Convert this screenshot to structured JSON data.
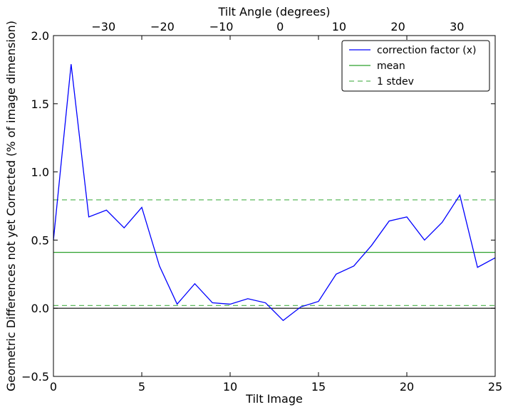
{
  "chart_data": {
    "type": "line",
    "xlabel": "Tilt Image",
    "ylabel": "Geometric Differences not yet Corrected (% of image dimension)",
    "top_xlabel": "Tilt Angle (degrees)",
    "xlim": [
      0,
      25
    ],
    "ylim": [
      -0.5,
      2.0
    ],
    "top_xlim": [
      -38.5,
      36.5
    ],
    "x_ticks": [
      0,
      5,
      10,
      15,
      20,
      25
    ],
    "x_tick_labels": [
      "0",
      "5",
      "10",
      "15",
      "20",
      "25"
    ],
    "y_ticks": [
      -0.5,
      0.0,
      0.5,
      1.0,
      1.5,
      2.0
    ],
    "y_tick_labels": [
      "−0.5",
      "0.0",
      "0.5",
      "1.0",
      "1.5",
      "2.0"
    ],
    "top_ticks": [
      -30,
      -20,
      -10,
      0,
      10,
      20,
      30
    ],
    "top_tick_labels": [
      "−30",
      "−20",
      "−10",
      "0",
      "10",
      "20",
      "30"
    ],
    "grid": false,
    "legend_position": "top-right",
    "zero_line": 0,
    "series": [
      {
        "name": "correction factor (x)",
        "color": "#0000ff",
        "style": "solid",
        "x": [
          0,
          1,
          2,
          3,
          4,
          5,
          6,
          7,
          8,
          9,
          10,
          11,
          12,
          13,
          14,
          15,
          16,
          17,
          18,
          19,
          20,
          21,
          22,
          23,
          24,
          25
        ],
        "values": [
          0.5,
          1.79,
          0.67,
          0.72,
          0.59,
          0.74,
          0.31,
          0.03,
          0.18,
          0.04,
          0.03,
          0.07,
          0.04,
          -0.09,
          0.01,
          0.05,
          0.25,
          0.31,
          0.46,
          0.64,
          0.67,
          0.5,
          0.63,
          0.83,
          0.3,
          0.37
        ]
      },
      {
        "name": "mean",
        "color": "#2ca02c",
        "style": "solid",
        "constant": 0.41
      },
      {
        "name": "1 stdev",
        "color": "#5cb85c",
        "style": "dashed",
        "constants": [
          0.795,
          0.02
        ]
      }
    ]
  }
}
